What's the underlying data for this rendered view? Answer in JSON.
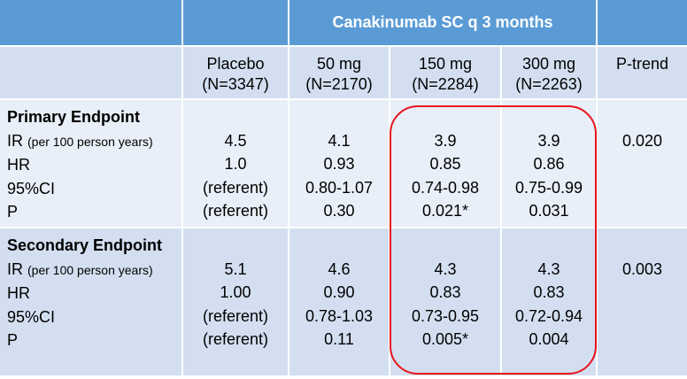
{
  "header": {
    "group_title": "Canakinumab SC q 3 months"
  },
  "columns": [
    {
      "label": "Placebo",
      "n": "(N=3347)"
    },
    {
      "label": "50 mg",
      "n": "(N=2170)"
    },
    {
      "label": "150 mg",
      "n": "(N=2284)"
    },
    {
      "label": "300 mg",
      "n": "(N=2263)"
    },
    {
      "label": "P-trend",
      "n": ""
    }
  ],
  "primary": {
    "title": "Primary Endpoint",
    "row_labels": {
      "ir": "IR",
      "ir_unit": "(per 100 person years)",
      "hr": "HR",
      "ci": "95%CI",
      "p": "P"
    },
    "placebo": {
      "ir": "4.5",
      "hr": "1.0",
      "ci": "(referent)",
      "p": "(referent)"
    },
    "mg50": {
      "ir": "4.1",
      "hr": "0.93",
      "ci": "0.80-1.07",
      "p": "0.30"
    },
    "mg150": {
      "ir": "3.9",
      "hr": "0.85",
      "ci": "0.74-0.98",
      "p": "0.021*"
    },
    "mg300": {
      "ir": "3.9",
      "hr": "0.86",
      "ci": "0.75-0.99",
      "p": "0.031"
    },
    "ptrend": "0.020"
  },
  "secondary": {
    "title": "Secondary Endpoint",
    "row_labels": {
      "ir": "IR",
      "ir_unit": "(per 100 person years)",
      "hr": "HR",
      "ci": "95%CI",
      "p": "P"
    },
    "placebo": {
      "ir": "5.1",
      "hr": "1.00",
      "ci": "(referent)",
      "p": "(referent)"
    },
    "mg50": {
      "ir": "4.6",
      "hr": "0.90",
      "ci": "0.78-1.03",
      "p": "0.11"
    },
    "mg150": {
      "ir": "4.3",
      "hr": "0.83",
      "ci": "0.73-0.95",
      "p": "0.005*"
    },
    "mg300": {
      "ir": "4.3",
      "hr": "0.83",
      "ci": "0.72-0.94",
      "p": "0.004"
    },
    "ptrend": "0.003"
  },
  "colors": {
    "header_bg": "#5b9bd5",
    "row_dark": "#d3dff0",
    "row_light": "#e9eff8",
    "highlight_border": "#e8141c"
  }
}
